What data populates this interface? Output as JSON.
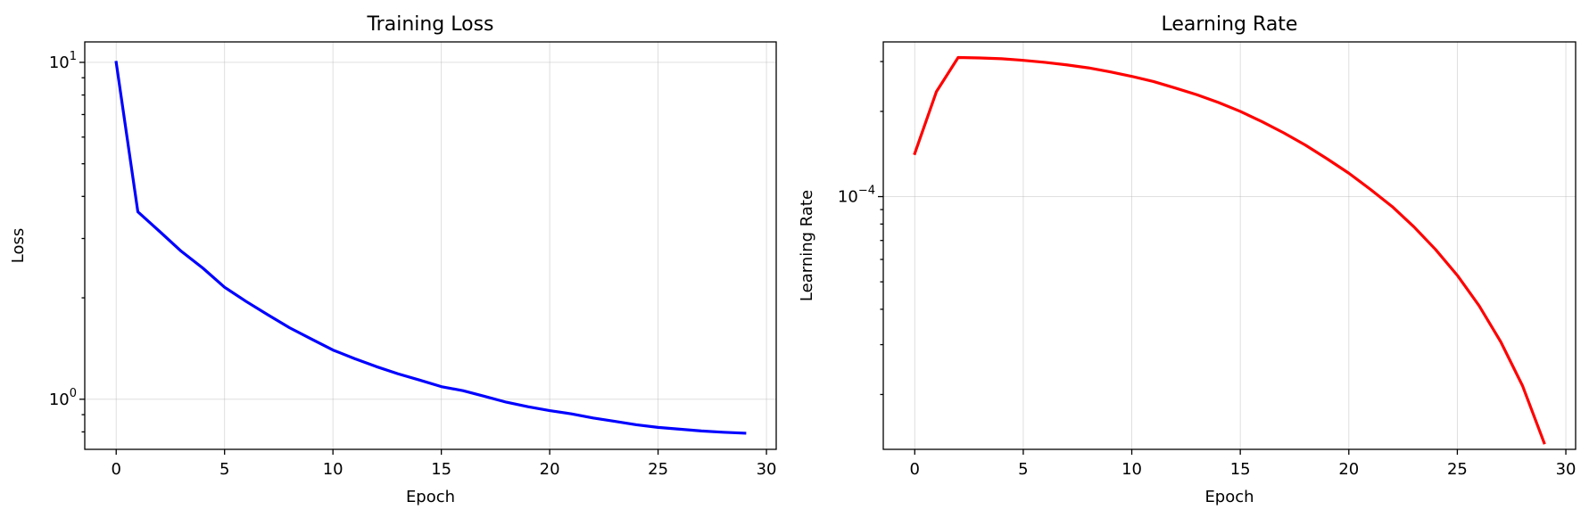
{
  "chart_data": [
    {
      "type": "line",
      "title": "Training Loss",
      "xlabel": "Epoch",
      "ylabel": "Loss",
      "yscale": "log",
      "grid": true,
      "xlim": [
        -1.45,
        30.45
      ],
      "ylim": [
        0.71,
        11.5
      ],
      "xticks": [
        0,
        5,
        10,
        15,
        20,
        25,
        30
      ],
      "yticks": [
        {
          "value": 1,
          "base": "10",
          "exp": "0"
        },
        {
          "value": 10,
          "base": "10",
          "exp": "1"
        }
      ],
      "yminor": [
        0.8,
        0.9,
        2,
        3,
        4,
        5,
        6,
        7,
        8,
        9
      ],
      "series": [
        {
          "color": "#0000ff",
          "x": [
            0,
            1,
            2,
            3,
            4,
            5,
            6,
            7,
            8,
            9,
            10,
            11,
            12,
            13,
            14,
            15,
            16,
            17,
            18,
            19,
            20,
            21,
            22,
            23,
            24,
            25,
            26,
            27,
            28,
            29
          ],
          "y": [
            10.0,
            3.6,
            3.15,
            2.75,
            2.45,
            2.15,
            1.95,
            1.78,
            1.63,
            1.51,
            1.4,
            1.32,
            1.25,
            1.19,
            1.14,
            1.09,
            1.06,
            1.02,
            0.98,
            0.95,
            0.925,
            0.905,
            0.88,
            0.86,
            0.84,
            0.825,
            0.815,
            0.805,
            0.798,
            0.793
          ]
        }
      ]
    },
    {
      "type": "line",
      "title": "Learning Rate",
      "xlabel": "Epoch",
      "ylabel": "Learning Rate",
      "yscale": "log",
      "grid": true,
      "xlim": [
        -1.45,
        30.45
      ],
      "ylim": [
        1.28e-05,
        0.000352
      ],
      "xticks": [
        0,
        5,
        10,
        15,
        20,
        25,
        30
      ],
      "yticks": [
        {
          "value": 0.0001,
          "base": "10",
          "exp": "−4"
        }
      ],
      "yminor": [
        2e-05,
        3e-05,
        4e-05,
        5e-05,
        6e-05,
        7e-05,
        8e-05,
        9e-05,
        0.0002,
        0.0003
      ],
      "series": [
        {
          "color": "#ff0000",
          "x": [
            0,
            1,
            2,
            3,
            4,
            5,
            6,
            7,
            8,
            9,
            10,
            11,
            12,
            13,
            14,
            15,
            16,
            17,
            18,
            19,
            20,
            21,
            22,
            23,
            24,
            25,
            26,
            27,
            28,
            29
          ],
          "y": [
            0.000142,
            0.000235,
            0.00031,
            0.000309,
            0.000307,
            0.000303,
            0.000298,
            0.000292,
            0.000285,
            0.000276,
            0.000266,
            0.000255,
            0.000242,
            0.000229,
            0.000215,
            0.0002,
            0.000184,
            0.000168,
            0.000152,
            0.000136,
            0.000121,
            0.000106,
            9.22e-05,
            7.82e-05,
            6.5e-05,
            5.27e-05,
            4.12e-05,
            3.07e-05,
            2.15e-05,
            1.35e-05
          ]
        }
      ]
    }
  ]
}
